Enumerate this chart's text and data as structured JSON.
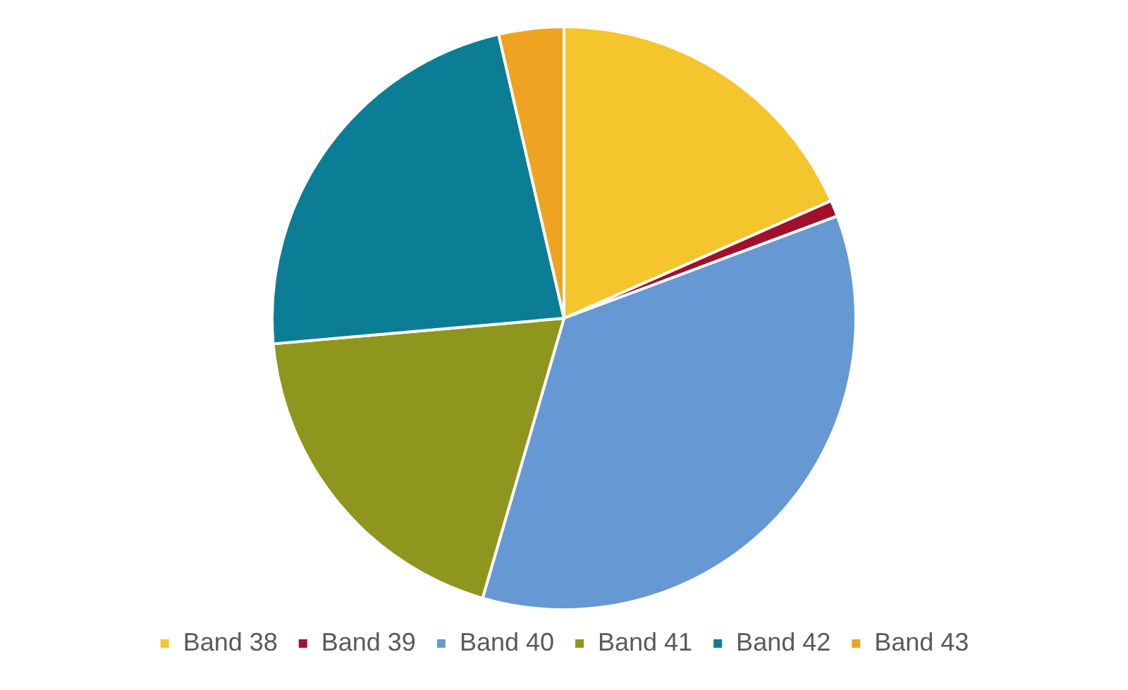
{
  "chart_data": {
    "type": "pie",
    "categories": [
      "Band 38",
      "Band 39",
      "Band 40",
      "Band 41",
      "Band 42",
      "Band 43"
    ],
    "values": [
      18.4,
      0.9,
      35.2,
      19.1,
      22.8,
      3.6
    ],
    "colors": [
      "#f4c52c",
      "#a0112c",
      "#6699d3",
      "#8f961e",
      "#0b7e96",
      "#eea321"
    ],
    "legend": "bottom"
  }
}
